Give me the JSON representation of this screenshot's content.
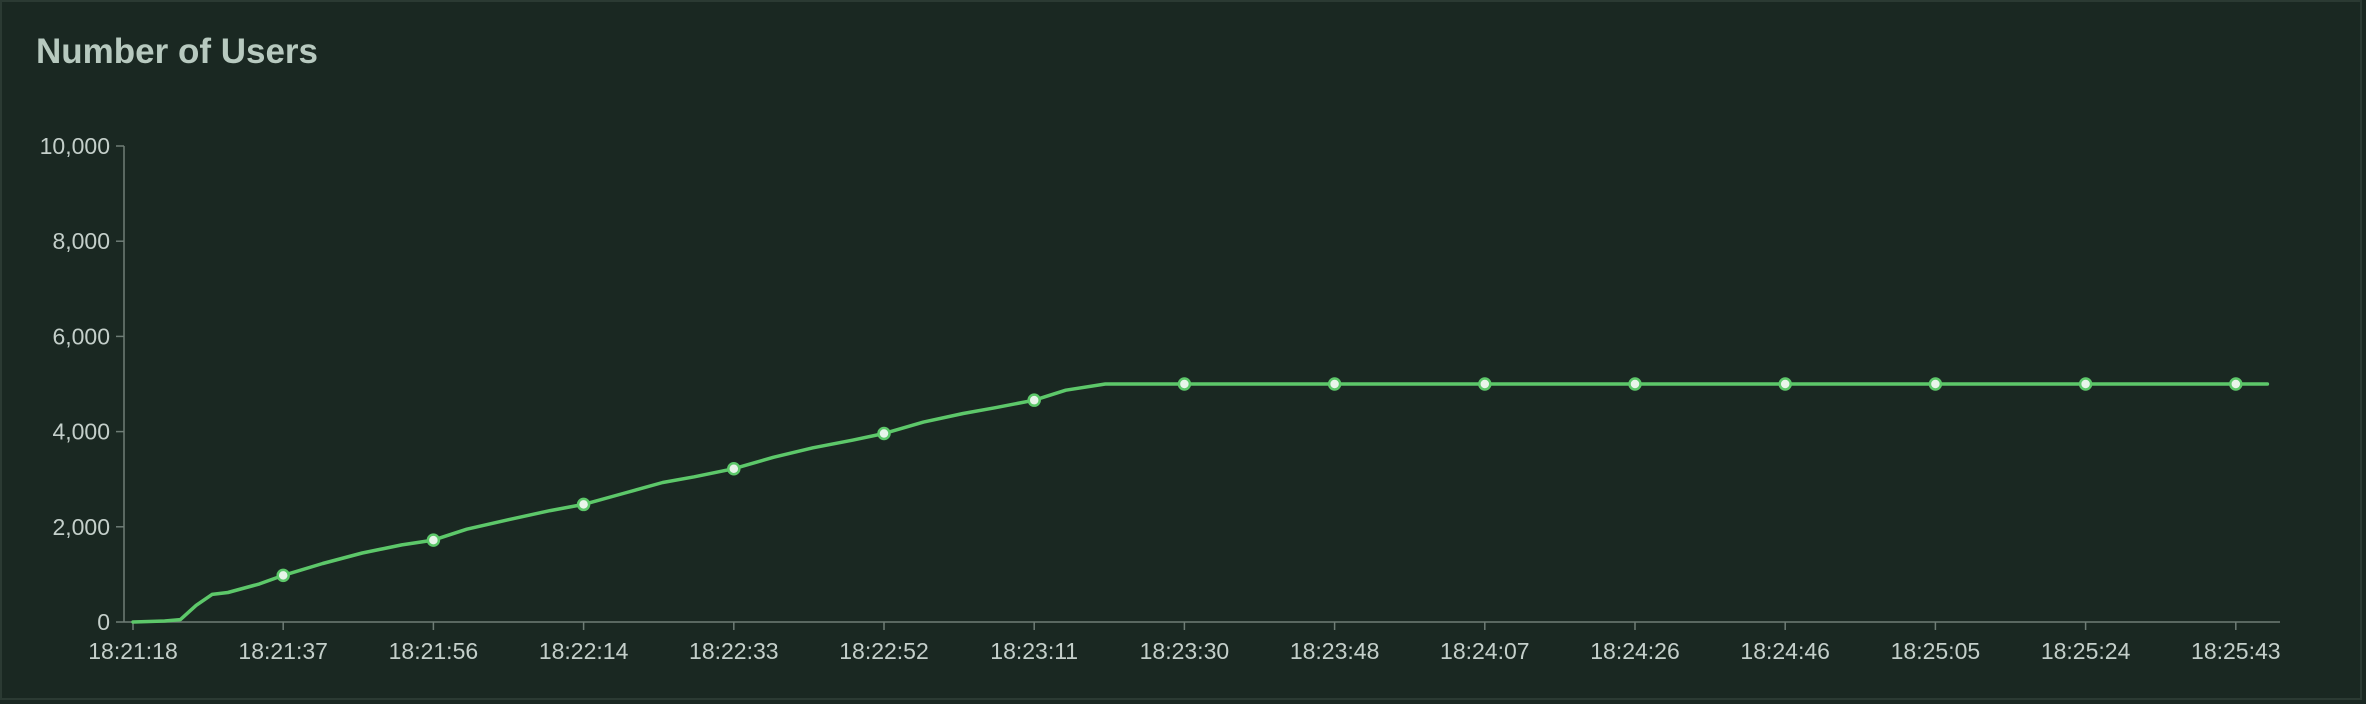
{
  "chart_data": {
    "type": "line",
    "title": "Number of Users",
    "xlabel": "",
    "ylabel": "",
    "ylim": [
      0,
      10000
    ],
    "y_ticks": [
      0,
      2000,
      4000,
      6000,
      8000,
      10000
    ],
    "y_tick_labels": [
      "0",
      "2,000",
      "4,000",
      "6,000",
      "8,000",
      "10,000"
    ],
    "x_tick_labels": [
      "18:21:18",
      "18:21:37",
      "18:21:56",
      "18:22:14",
      "18:22:33",
      "18:22:52",
      "18:23:11",
      "18:23:30",
      "18:23:48",
      "18:24:07",
      "18:24:26",
      "18:24:46",
      "18:25:05",
      "18:25:24",
      "18:25:43"
    ],
    "grid": false,
    "line_color": "#5dc86a",
    "series": [
      {
        "name": "",
        "x": [
          "18:21:18",
          "18:21:22",
          "18:21:24",
          "18:21:26",
          "18:21:28",
          "18:21:30",
          "18:21:34",
          "18:21:37",
          "18:21:42",
          "18:21:47",
          "18:21:52",
          "18:21:56",
          "18:22:00",
          "18:22:05",
          "18:22:10",
          "18:22:14",
          "18:22:19",
          "18:22:24",
          "18:22:28",
          "18:22:33",
          "18:22:38",
          "18:22:43",
          "18:22:48",
          "18:22:52",
          "18:22:57",
          "18:23:02",
          "18:23:06",
          "18:23:11",
          "18:23:15",
          "18:23:20",
          "18:23:30",
          "18:23:48",
          "18:24:07",
          "18:24:26",
          "18:24:46",
          "18:25:05",
          "18:25:24",
          "18:25:43",
          "18:25:47"
        ],
        "values": [
          0,
          20,
          50,
          350,
          580,
          620,
          800,
          980,
          1230,
          1450,
          1620,
          1720,
          1950,
          2150,
          2340,
          2470,
          2700,
          2930,
          3050,
          3220,
          3460,
          3660,
          3820,
          3960,
          4200,
          4380,
          4500,
          4660,
          4870,
          5000,
          5000,
          5000,
          5000,
          5000,
          5000,
          5000,
          5000,
          5000,
          5000
        ],
        "markers": [
          "18:21:37",
          "18:21:56",
          "18:22:14",
          "18:22:33",
          "18:22:52",
          "18:23:11",
          "18:23:30",
          "18:23:48",
          "18:24:07",
          "18:24:26",
          "18:24:46",
          "18:25:05",
          "18:25:24",
          "18:25:43"
        ]
      }
    ]
  }
}
